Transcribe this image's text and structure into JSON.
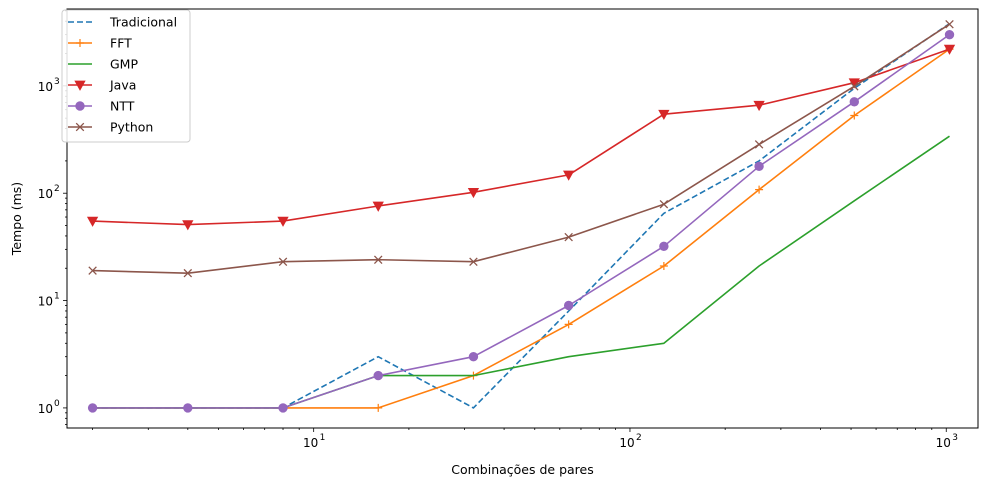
{
  "chart_data": {
    "type": "line",
    "x_scale": "log",
    "y_scale": "log",
    "xlabel": "Combinações de pares",
    "ylabel": "Tempo (ms)",
    "xlim": [
      1.66,
      1260
    ],
    "ylim": [
      0.65,
      5200
    ],
    "x_ticks": [
      {
        "base": "10",
        "exp": "1",
        "value": 10
      },
      {
        "base": "10",
        "exp": "2",
        "value": 100
      },
      {
        "base": "10",
        "exp": "3",
        "value": 1000
      }
    ],
    "y_ticks": [
      {
        "base": "10",
        "exp": "0",
        "value": 1
      },
      {
        "base": "10",
        "exp": "1",
        "value": 10
      },
      {
        "base": "10",
        "exp": "2",
        "value": 100
      },
      {
        "base": "10",
        "exp": "3",
        "value": 1000
      }
    ],
    "grid": false,
    "legend_position": "top-left",
    "x": [
      2,
      4,
      8,
      16,
      32,
      64,
      128,
      256,
      512,
      1024
    ],
    "series": [
      {
        "name": "Tradicional",
        "color": "#1f77b4",
        "dash": "dashed",
        "marker": "none",
        "values": [
          1,
          1,
          1,
          3,
          1,
          8,
          65,
          200,
          950,
          3800
        ]
      },
      {
        "name": "FFT",
        "color": "#ff7f0e",
        "dash": "solid",
        "marker": "plus",
        "values": [
          1,
          1,
          1,
          1,
          2,
          6,
          21,
          108,
          530,
          2200
        ]
      },
      {
        "name": "GMP",
        "color": "#2ca02c",
        "dash": "solid",
        "marker": "none",
        "values": [
          1,
          1,
          1,
          2,
          2,
          3,
          4,
          21,
          85,
          340
        ]
      },
      {
        "name": "Java",
        "color": "#d62728",
        "dash": "solid",
        "marker": "triangle-down",
        "values": [
          55,
          51,
          55,
          76,
          102,
          148,
          545,
          660,
          1070,
          2200
        ]
      },
      {
        "name": "NTT",
        "color": "#9467bd",
        "dash": "solid",
        "marker": "circle",
        "values": [
          1,
          1,
          1,
          2,
          3,
          9,
          32,
          178,
          710,
          3000
        ]
      },
      {
        "name": "Python",
        "color": "#8c564b",
        "dash": "solid",
        "marker": "x",
        "values": [
          19,
          18,
          23,
          24,
          23,
          39,
          79,
          285,
          990,
          3750
        ]
      }
    ]
  }
}
